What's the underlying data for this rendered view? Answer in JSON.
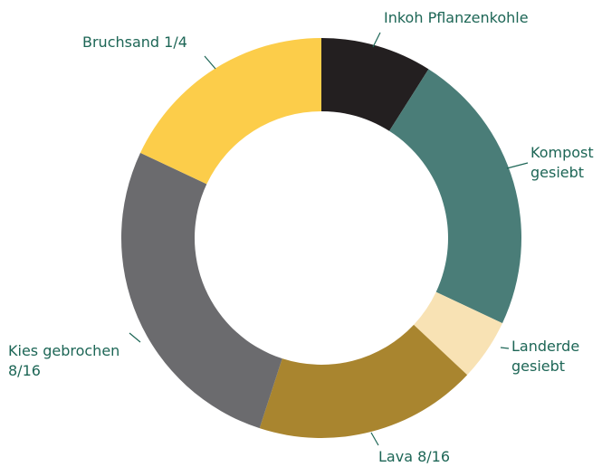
{
  "chart_data": {
    "type": "donut",
    "categories": [
      "Inkoh Pflanzenkohle",
      "Kompost gesiebt",
      "Landerde gesiebt",
      "Lava 8/16",
      "Kies gebrochen 8/16",
      "Bruchsand 1/4"
    ],
    "values": [
      9,
      23,
      5,
      18,
      27,
      18
    ],
    "colors": [
      "#231f20",
      "#4a7d78",
      "#f8e2b4",
      "#a9852f",
      "#6b6b6e",
      "#fccd4a"
    ]
  }
}
